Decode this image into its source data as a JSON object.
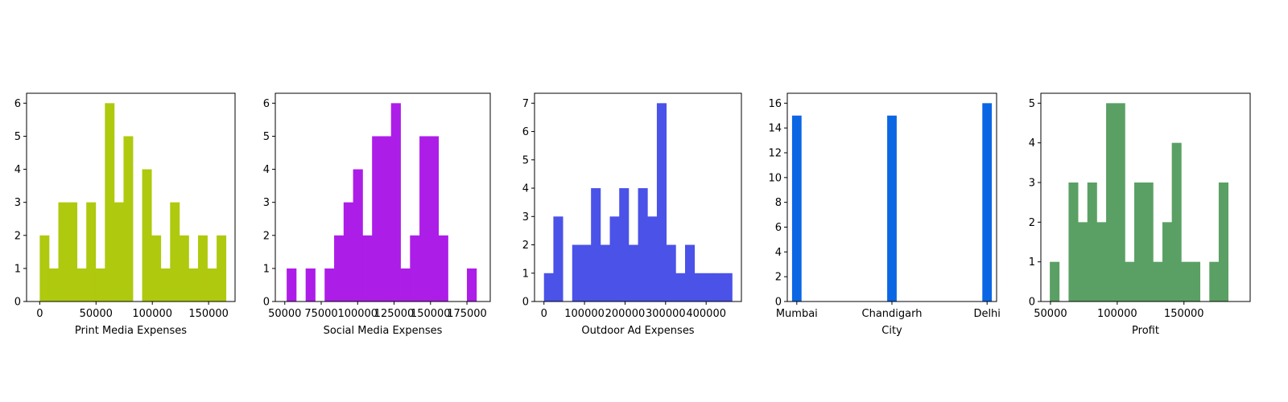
{
  "chart_data": [
    {
      "type": "bar",
      "subtype": "histogram",
      "xlabel": "Print Media Expenses",
      "ylabel": "",
      "color": "#afc90e",
      "xlim": [
        -11700,
        173500
      ],
      "ylim": [
        0,
        6.3
      ],
      "xticks": [
        0,
        50000,
        100000,
        150000
      ],
      "xtick_labels": [
        "0",
        "50000",
        "100000",
        "150000"
      ],
      "yticks": [
        0,
        1,
        2,
        3,
        4,
        5,
        6
      ],
      "ytick_labels": [
        "0",
        "1",
        "2",
        "3",
        "4",
        "5",
        "6"
      ],
      "bin_start": 0,
      "bin_width": 8270,
      "counts": [
        2,
        1,
        3,
        3,
        1,
        3,
        1,
        6,
        3,
        5,
        0,
        4,
        2,
        1,
        3,
        2,
        1,
        2,
        1,
        2
      ]
    },
    {
      "type": "bar",
      "subtype": "histogram",
      "xlabel": "Social Media Expenses",
      "ylabel": "",
      "color": "#ad1de8",
      "xlim": [
        43500,
        191000
      ],
      "ylim": [
        0,
        6.3
      ],
      "xticks": [
        50000,
        75000,
        100000,
        125000,
        150000,
        175000
      ],
      "xtick_labels": [
        "50000",
        "75000",
        "100000",
        "125000",
        "150000",
        "175000"
      ],
      "yticks": [
        0,
        1,
        2,
        3,
        4,
        5,
        6
      ],
      "ytick_labels": [
        "0",
        "1",
        "2",
        "3",
        "4",
        "5",
        "6"
      ],
      "bin_start": 51300,
      "bin_width": 6510,
      "counts": [
        1,
        0,
        1,
        0,
        1,
        2,
        3,
        4,
        2,
        5,
        5,
        6,
        1,
        2,
        5,
        5,
        2,
        0,
        0,
        1
      ]
    },
    {
      "type": "bar",
      "subtype": "histogram",
      "xlabel": "Outdoor Ad Expenses",
      "ylabel": "",
      "color": "#4a52e8",
      "xlim": [
        -23300,
        487000
      ],
      "ylim": [
        0,
        7.35
      ],
      "xticks": [
        0,
        100000,
        200000,
        300000,
        400000
      ],
      "xtick_labels": [
        "0",
        "100000",
        "200000",
        "300000",
        "400000"
      ],
      "yticks": [
        0,
        1,
        2,
        3,
        4,
        5,
        6,
        7
      ],
      "ytick_labels": [
        "0",
        "1",
        "2",
        "3",
        "4",
        "5",
        "6",
        "7"
      ],
      "bin_start": 0,
      "bin_width": 23200,
      "counts": [
        1,
        3,
        0,
        2,
        2,
        4,
        2,
        3,
        4,
        2,
        4,
        3,
        7,
        2,
        1,
        2,
        1,
        1,
        1,
        1
      ]
    },
    {
      "type": "bar",
      "subtype": "histogram",
      "xlabel": "City",
      "ylabel": "",
      "color": "#0b66e4",
      "categories": [
        "Mumbai",
        "Chandigarh",
        "Delhi"
      ],
      "values": [
        15,
        15,
        16
      ],
      "xlim": [
        -0.1,
        2.1
      ],
      "ylim": [
        0,
        16.8
      ],
      "xticks": [
        0,
        1,
        2
      ],
      "xtick_labels": [
        "Mumbai",
        "Chandigarh",
        "Delhi"
      ],
      "yticks": [
        0,
        2,
        4,
        6,
        8,
        10,
        12,
        14,
        16
      ],
      "ytick_labels": [
        "0",
        "2",
        "4",
        "6",
        "8",
        "10",
        "12",
        "14",
        "16"
      ],
      "bar_width": 0.1
    },
    {
      "type": "bar",
      "subtype": "histogram",
      "xlabel": "Profit",
      "ylabel": "",
      "color": "#5aa064",
      "xlim": [
        42800,
        199600
      ],
      "ylim": [
        0,
        5.25
      ],
      "xticks": [
        50000,
        100000,
        150000
      ],
      "xtick_labels": [
        "50000",
        "100000",
        "150000"
      ],
      "yticks": [
        0,
        1,
        2,
        3,
        4,
        5
      ],
      "ytick_labels": [
        "0",
        "1",
        "2",
        "3",
        "4",
        "5"
      ],
      "bin_start": 49500,
      "bin_width": 7030,
      "counts": [
        1,
        0,
        3,
        2,
        3,
        2,
        5,
        5,
        1,
        3,
        3,
        1,
        2,
        4,
        1,
        1,
        0,
        1,
        3
      ]
    }
  ]
}
